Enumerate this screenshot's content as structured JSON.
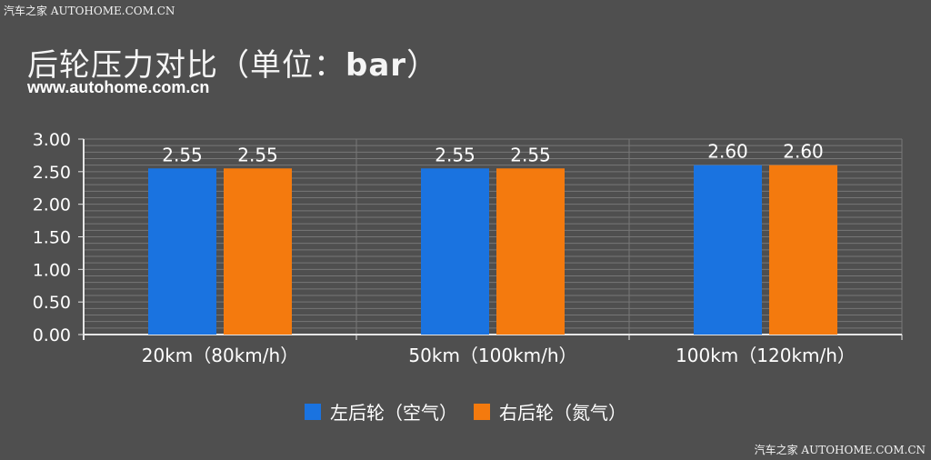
{
  "watermark_top": "汽车之家 AUTOHOME.COM.CN",
  "watermark_bottom": "汽车之家 AUTOHOME.COM.CN",
  "title_main": "后轮压力对比（单位：",
  "title_unit": "bar",
  "title_close": "）",
  "subtitle": "www.autohome.com.cn",
  "colors": {
    "background": "#4f4f4f",
    "series_air": "#1a73e0",
    "series_nitrogen": "#f47a0e",
    "grid": "#777777",
    "axis": "#e6e6e6"
  },
  "chart_data": {
    "type": "bar",
    "title": "后轮压力对比（单位：bar）",
    "categories": [
      "20km（80km/h）",
      "50km（100km/h）",
      "100km（120km/h）"
    ],
    "series": [
      {
        "name": "左后轮（空气）",
        "values": [
          2.55,
          2.55,
          2.6
        ],
        "labels": [
          "2.55",
          "2.55",
          "2.60"
        ],
        "color": "#1a73e0"
      },
      {
        "name": "右后轮（氮气）",
        "values": [
          2.55,
          2.55,
          2.6
        ],
        "labels": [
          "2.55",
          "2.55",
          "2.60"
        ],
        "color": "#f47a0e"
      }
    ],
    "ylim": [
      0,
      3
    ],
    "yticks": [
      "0.00",
      "0.50",
      "1.00",
      "1.50",
      "2.00",
      "2.50",
      "3.00"
    ],
    "ytick_values": [
      0,
      0.5,
      1,
      1.5,
      2,
      2.5,
      3
    ],
    "xlabel": "",
    "ylabel": "",
    "grid": true,
    "legend_position": "bottom"
  }
}
